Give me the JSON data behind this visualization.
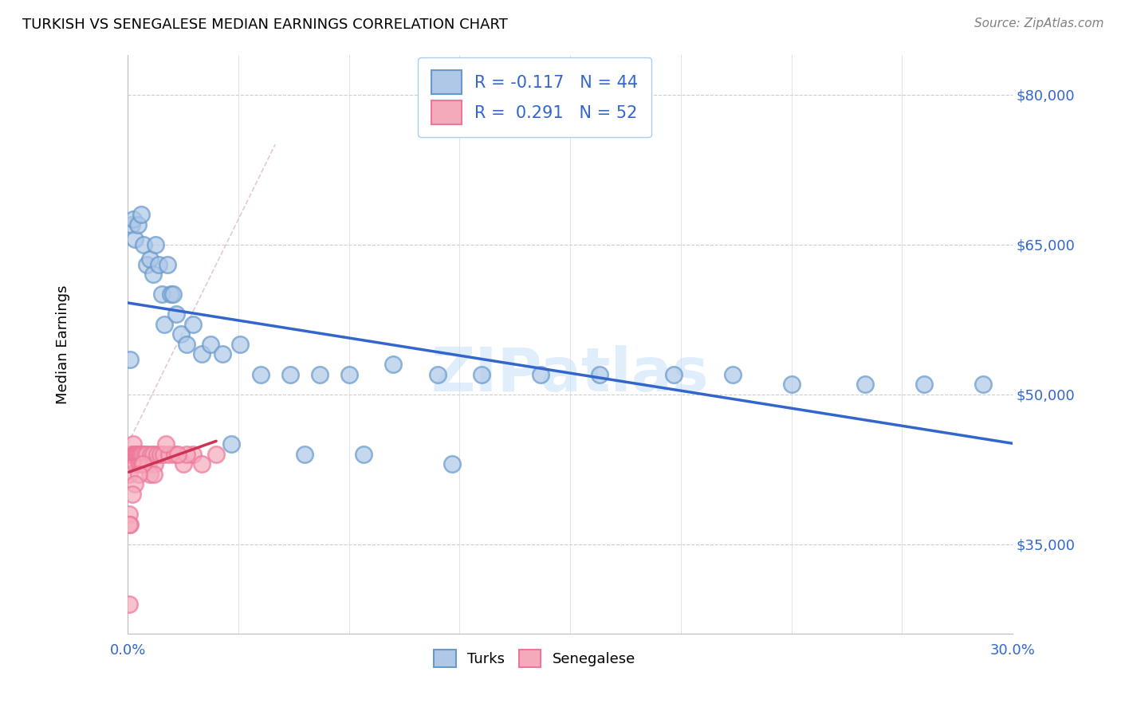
{
  "title": "TURKISH VS SENEGALESE MEDIAN EARNINGS CORRELATION CHART",
  "source": "Source: ZipAtlas.com",
  "ylabel": "Median Earnings",
  "xlim": [
    0.0,
    30.0
  ],
  "ylim": [
    26000,
    84000
  ],
  "yticks": [
    35000,
    50000,
    65000,
    80000
  ],
  "ytick_labels": [
    "$35,000",
    "$50,000",
    "$65,000",
    "$80,000"
  ],
  "turks_R": -0.117,
  "turks_N": 44,
  "senegalese_R": 0.291,
  "senegalese_N": 52,
  "turks_color": "#AFC8E8",
  "senegalese_color": "#F5AABB",
  "turks_edge_color": "#6699CC",
  "senegalese_edge_color": "#EE7799",
  "turks_line_color": "#3366CC",
  "senegalese_line_color": "#CC3355",
  "legend_text_color": "#3366CC",
  "watermark": "ZIPatlas",
  "background_color": "#FFFFFF",
  "turks_x": [
    0.08,
    0.12,
    0.18,
    0.25,
    0.35,
    0.45,
    0.55,
    0.65,
    0.75,
    0.85,
    0.95,
    1.05,
    1.15,
    1.25,
    1.35,
    1.45,
    1.55,
    1.65,
    1.8,
    2.0,
    2.2,
    2.5,
    2.8,
    3.2,
    3.8,
    4.5,
    5.5,
    6.5,
    7.5,
    9.0,
    10.5,
    12.0,
    14.0,
    16.0,
    18.5,
    20.5,
    22.5,
    25.0,
    27.0,
    29.0,
    6.0,
    8.0,
    11.0,
    3.5
  ],
  "turks_y": [
    53500,
    67000,
    67500,
    65500,
    67000,
    68000,
    65000,
    63000,
    63500,
    62000,
    65000,
    63000,
    60000,
    57000,
    63000,
    60000,
    60000,
    58000,
    56000,
    55000,
    57000,
    54000,
    55000,
    54000,
    55000,
    52000,
    52000,
    52000,
    52000,
    53000,
    52000,
    52000,
    52000,
    52000,
    52000,
    52000,
    51000,
    51000,
    51000,
    51000,
    44000,
    44000,
    43000,
    45000
  ],
  "senegalese_x": [
    0.04,
    0.06,
    0.08,
    0.1,
    0.12,
    0.14,
    0.16,
    0.18,
    0.2,
    0.22,
    0.24,
    0.26,
    0.28,
    0.3,
    0.32,
    0.34,
    0.36,
    0.38,
    0.4,
    0.42,
    0.44,
    0.46,
    0.48,
    0.5,
    0.55,
    0.6,
    0.65,
    0.7,
    0.78,
    0.85,
    0.92,
    1.0,
    1.1,
    1.2,
    1.4,
    1.6,
    1.9,
    2.2,
    2.5,
    3.0,
    1.3,
    0.75,
    2.0,
    1.7,
    0.9,
    0.52,
    0.38,
    0.25,
    0.15,
    0.08,
    0.06,
    0.04
  ],
  "senegalese_y": [
    38000,
    42000,
    44000,
    44000,
    44000,
    44000,
    44000,
    45000,
    44000,
    44000,
    44000,
    43000,
    44000,
    44000,
    44000,
    44000,
    44000,
    43000,
    44000,
    44000,
    43000,
    44000,
    43000,
    44000,
    43000,
    44000,
    44000,
    43000,
    44000,
    44000,
    43000,
    44000,
    44000,
    44000,
    44000,
    44000,
    43000,
    44000,
    43000,
    44000,
    45000,
    42000,
    44000,
    44000,
    42000,
    43000,
    42000,
    41000,
    40000,
    37000,
    37000,
    29000
  ]
}
